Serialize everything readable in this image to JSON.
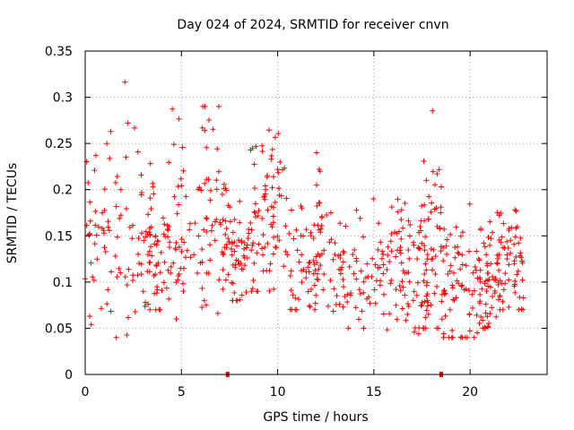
{
  "chart_data": {
    "type": "scatter",
    "title": "Day 024 of 2024, SRMTID for receiver cnvn",
    "xlabel": "GPS time / hours",
    "ylabel": "SRMTID / TECUs",
    "xlim": [
      0,
      24
    ],
    "ylim": [
      0,
      0.35
    ],
    "grid": true,
    "marker": "plus",
    "color": "#ff0000",
    "x_ticks": [
      0,
      5,
      10,
      15,
      20
    ],
    "x_tick_labels": [
      "0",
      "5",
      "10",
      "15",
      "20"
    ],
    "y_ticks": [
      0,
      0.05,
      0.1,
      0.15,
      0.2,
      0.25,
      0.3,
      0.35
    ],
    "y_tick_labels": [
      "0",
      "0.05",
      "0.1",
      "0.15",
      "0.2",
      "0.25",
      "0.3",
      "0.35"
    ],
    "axis_markers_x": [
      7.4,
      18.5
    ],
    "series": [
      {
        "name": "SRMTID",
        "segments": [
          {
            "start": 0.0,
            "end": 3.0,
            "lo": 0.04,
            "hi": 0.32,
            "center": 0.15,
            "density": 80
          },
          {
            "start": 3.0,
            "end": 4.5,
            "lo": 0.07,
            "hi": 0.24,
            "center": 0.13,
            "density": 70
          },
          {
            "start": 4.5,
            "end": 7.0,
            "lo": 0.06,
            "hi": 0.29,
            "center": 0.16,
            "density": 80
          },
          {
            "start": 7.0,
            "end": 8.5,
            "lo": 0.08,
            "hi": 0.23,
            "center": 0.14,
            "density": 70
          },
          {
            "start": 8.5,
            "end": 10.5,
            "lo": 0.09,
            "hi": 0.28,
            "center": 0.18,
            "density": 80
          },
          {
            "start": 10.5,
            "end": 12.5,
            "lo": 0.07,
            "hi": 0.24,
            "center": 0.14,
            "density": 75
          },
          {
            "start": 12.5,
            "end": 15.5,
            "lo": 0.05,
            "hi": 0.19,
            "center": 0.11,
            "density": 80
          },
          {
            "start": 15.5,
            "end": 17.5,
            "lo": 0.04,
            "hi": 0.22,
            "center": 0.11,
            "density": 75
          },
          {
            "start": 17.5,
            "end": 18.5,
            "lo": 0.05,
            "hi": 0.3,
            "center": 0.13,
            "density": 60
          },
          {
            "start": 18.5,
            "end": 20.5,
            "lo": 0.04,
            "hi": 0.21,
            "center": 0.09,
            "density": 75
          },
          {
            "start": 20.5,
            "end": 21.5,
            "lo": 0.05,
            "hi": 0.19,
            "center": 0.1,
            "density": 60
          },
          {
            "start": 21.5,
            "end": 22.8,
            "lo": 0.07,
            "hi": 0.19,
            "center": 0.12,
            "density": 60
          }
        ]
      }
    ]
  }
}
